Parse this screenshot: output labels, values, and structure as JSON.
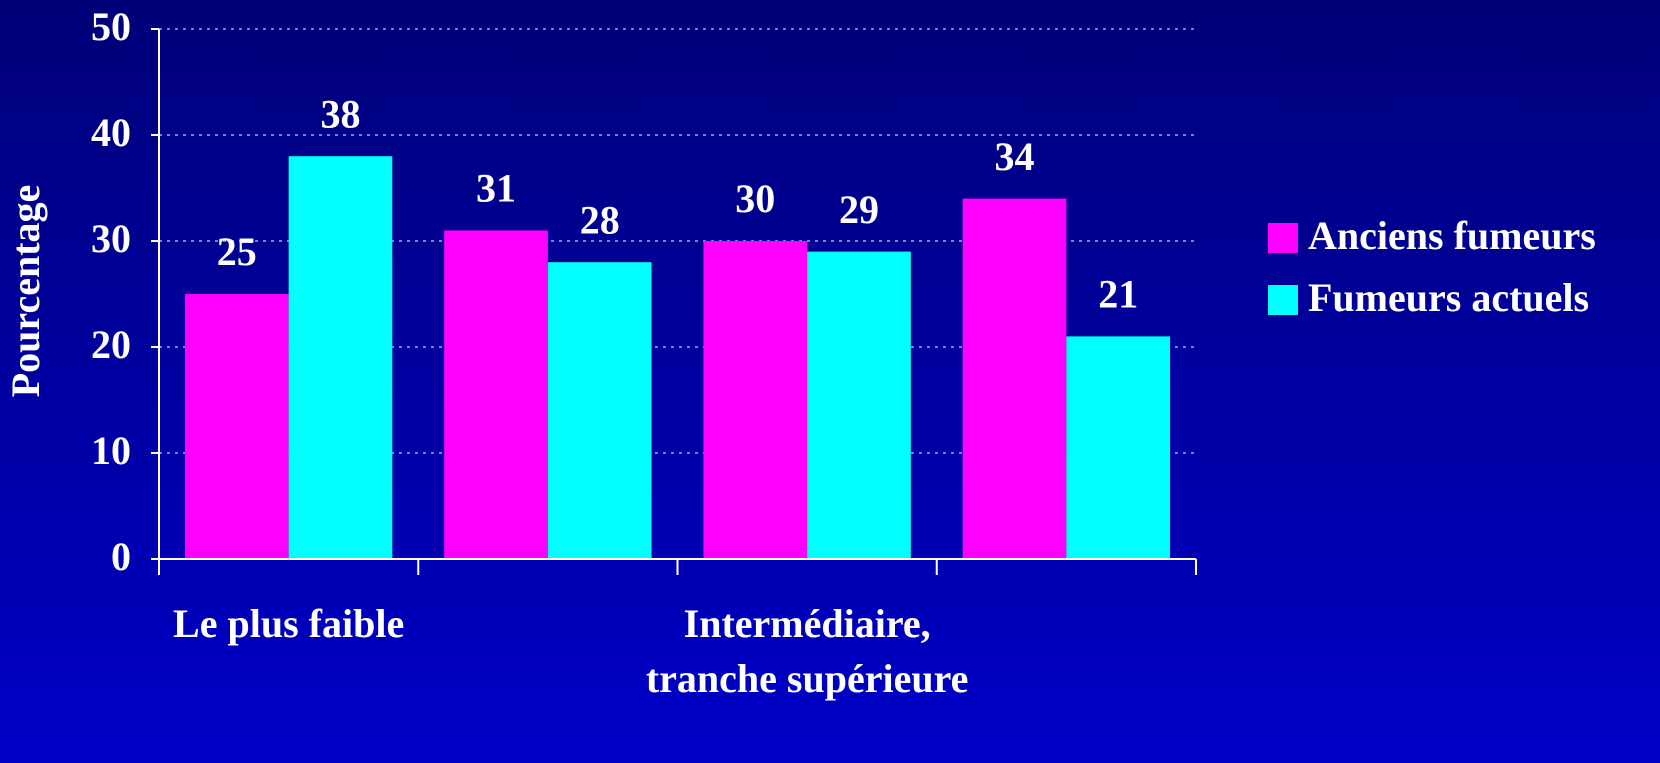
{
  "chart_data": {
    "type": "bar",
    "y_label": "Pourcentage",
    "categories": [
      "Le plus faible",
      null,
      "Intermédiaire, tranche supérieure",
      null
    ],
    "series": [
      {
        "name": "Anciens fumeurs",
        "color": "#ff00ff",
        "values": [
          25,
          31,
          30,
          34
        ]
      },
      {
        "name": "Fumeurs actuels",
        "color": "#00ffff",
        "values": [
          38,
          28,
          29,
          21
        ]
      }
    ],
    "ylim": [
      0,
      50
    ],
    "yticks": [
      0,
      10,
      20,
      30,
      40,
      50
    ],
    "grid": true,
    "legend": "right"
  }
}
